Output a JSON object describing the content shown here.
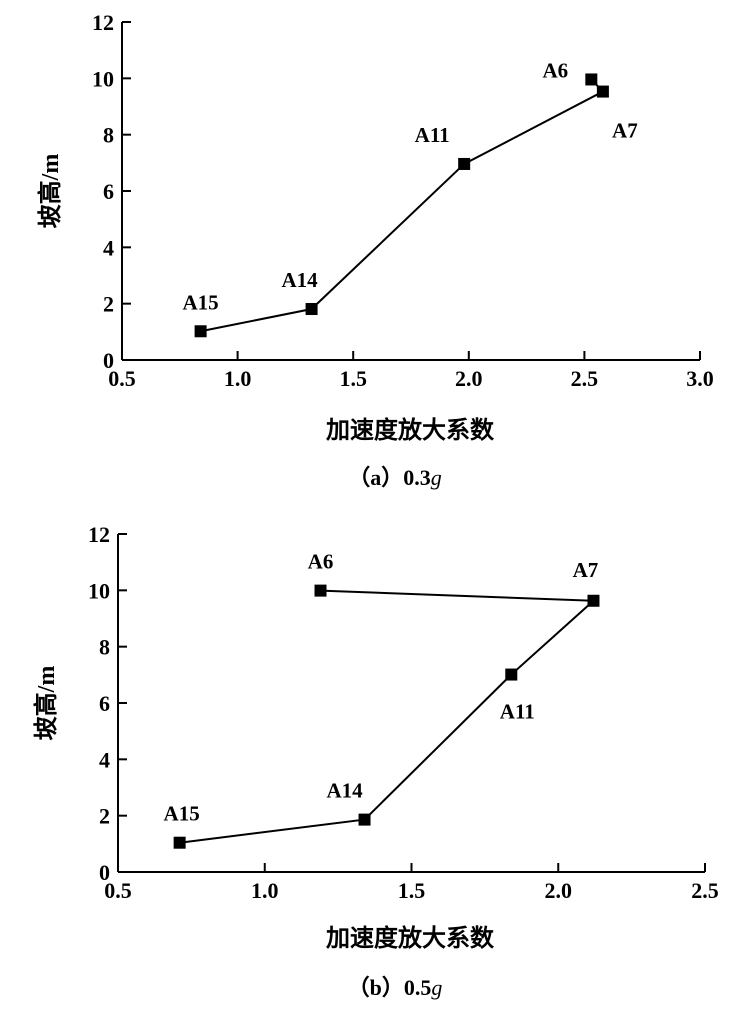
{
  "chart_data": [
    {
      "type": "line",
      "caption_prefix": "（a）0.3",
      "caption_unit": "g",
      "xlabel": "加速度放大系数",
      "ylabel": "坡高/m",
      "xlim": [
        0.5,
        3.0
      ],
      "ylim": [
        0,
        12
      ],
      "xticks": [
        "0.5",
        "1.0",
        "1.5",
        "2.0",
        "2.5",
        "3.0"
      ],
      "yticks": [
        "0",
        "2",
        "4",
        "6",
        "8",
        "10",
        "12"
      ],
      "grid": false,
      "points": [
        {
          "name": "A15",
          "x": 0.84,
          "y": 1.02
        },
        {
          "name": "A14",
          "x": 1.32,
          "y": 1.81
        },
        {
          "name": "A11",
          "x": 1.98,
          "y": 6.96
        },
        {
          "name": "A7",
          "x": 2.58,
          "y": 9.53
        },
        {
          "name": "A6",
          "x": 2.53,
          "y": 9.96
        }
      ]
    },
    {
      "type": "line",
      "caption_prefix": "（b）0.5",
      "caption_unit": "g",
      "xlabel": "加速度放大系数",
      "ylabel": "坡高/m",
      "xlim": [
        0.5,
        2.5
      ],
      "ylim": [
        0,
        12
      ],
      "xticks": [
        "0.5",
        "1.0",
        "1.5",
        "2.0",
        "2.5"
      ],
      "yticks": [
        "0",
        "2",
        "4",
        "6",
        "8",
        "10",
        "12"
      ],
      "grid": false,
      "points": [
        {
          "name": "A15",
          "x": 0.71,
          "y": 1.04
        },
        {
          "name": "A14",
          "x": 1.34,
          "y": 1.86
        },
        {
          "name": "A11",
          "x": 1.84,
          "y": 7.01
        },
        {
          "name": "A7",
          "x": 2.12,
          "y": 9.63
        },
        {
          "name": "A6",
          "x": 1.19,
          "y": 9.99
        }
      ]
    }
  ]
}
